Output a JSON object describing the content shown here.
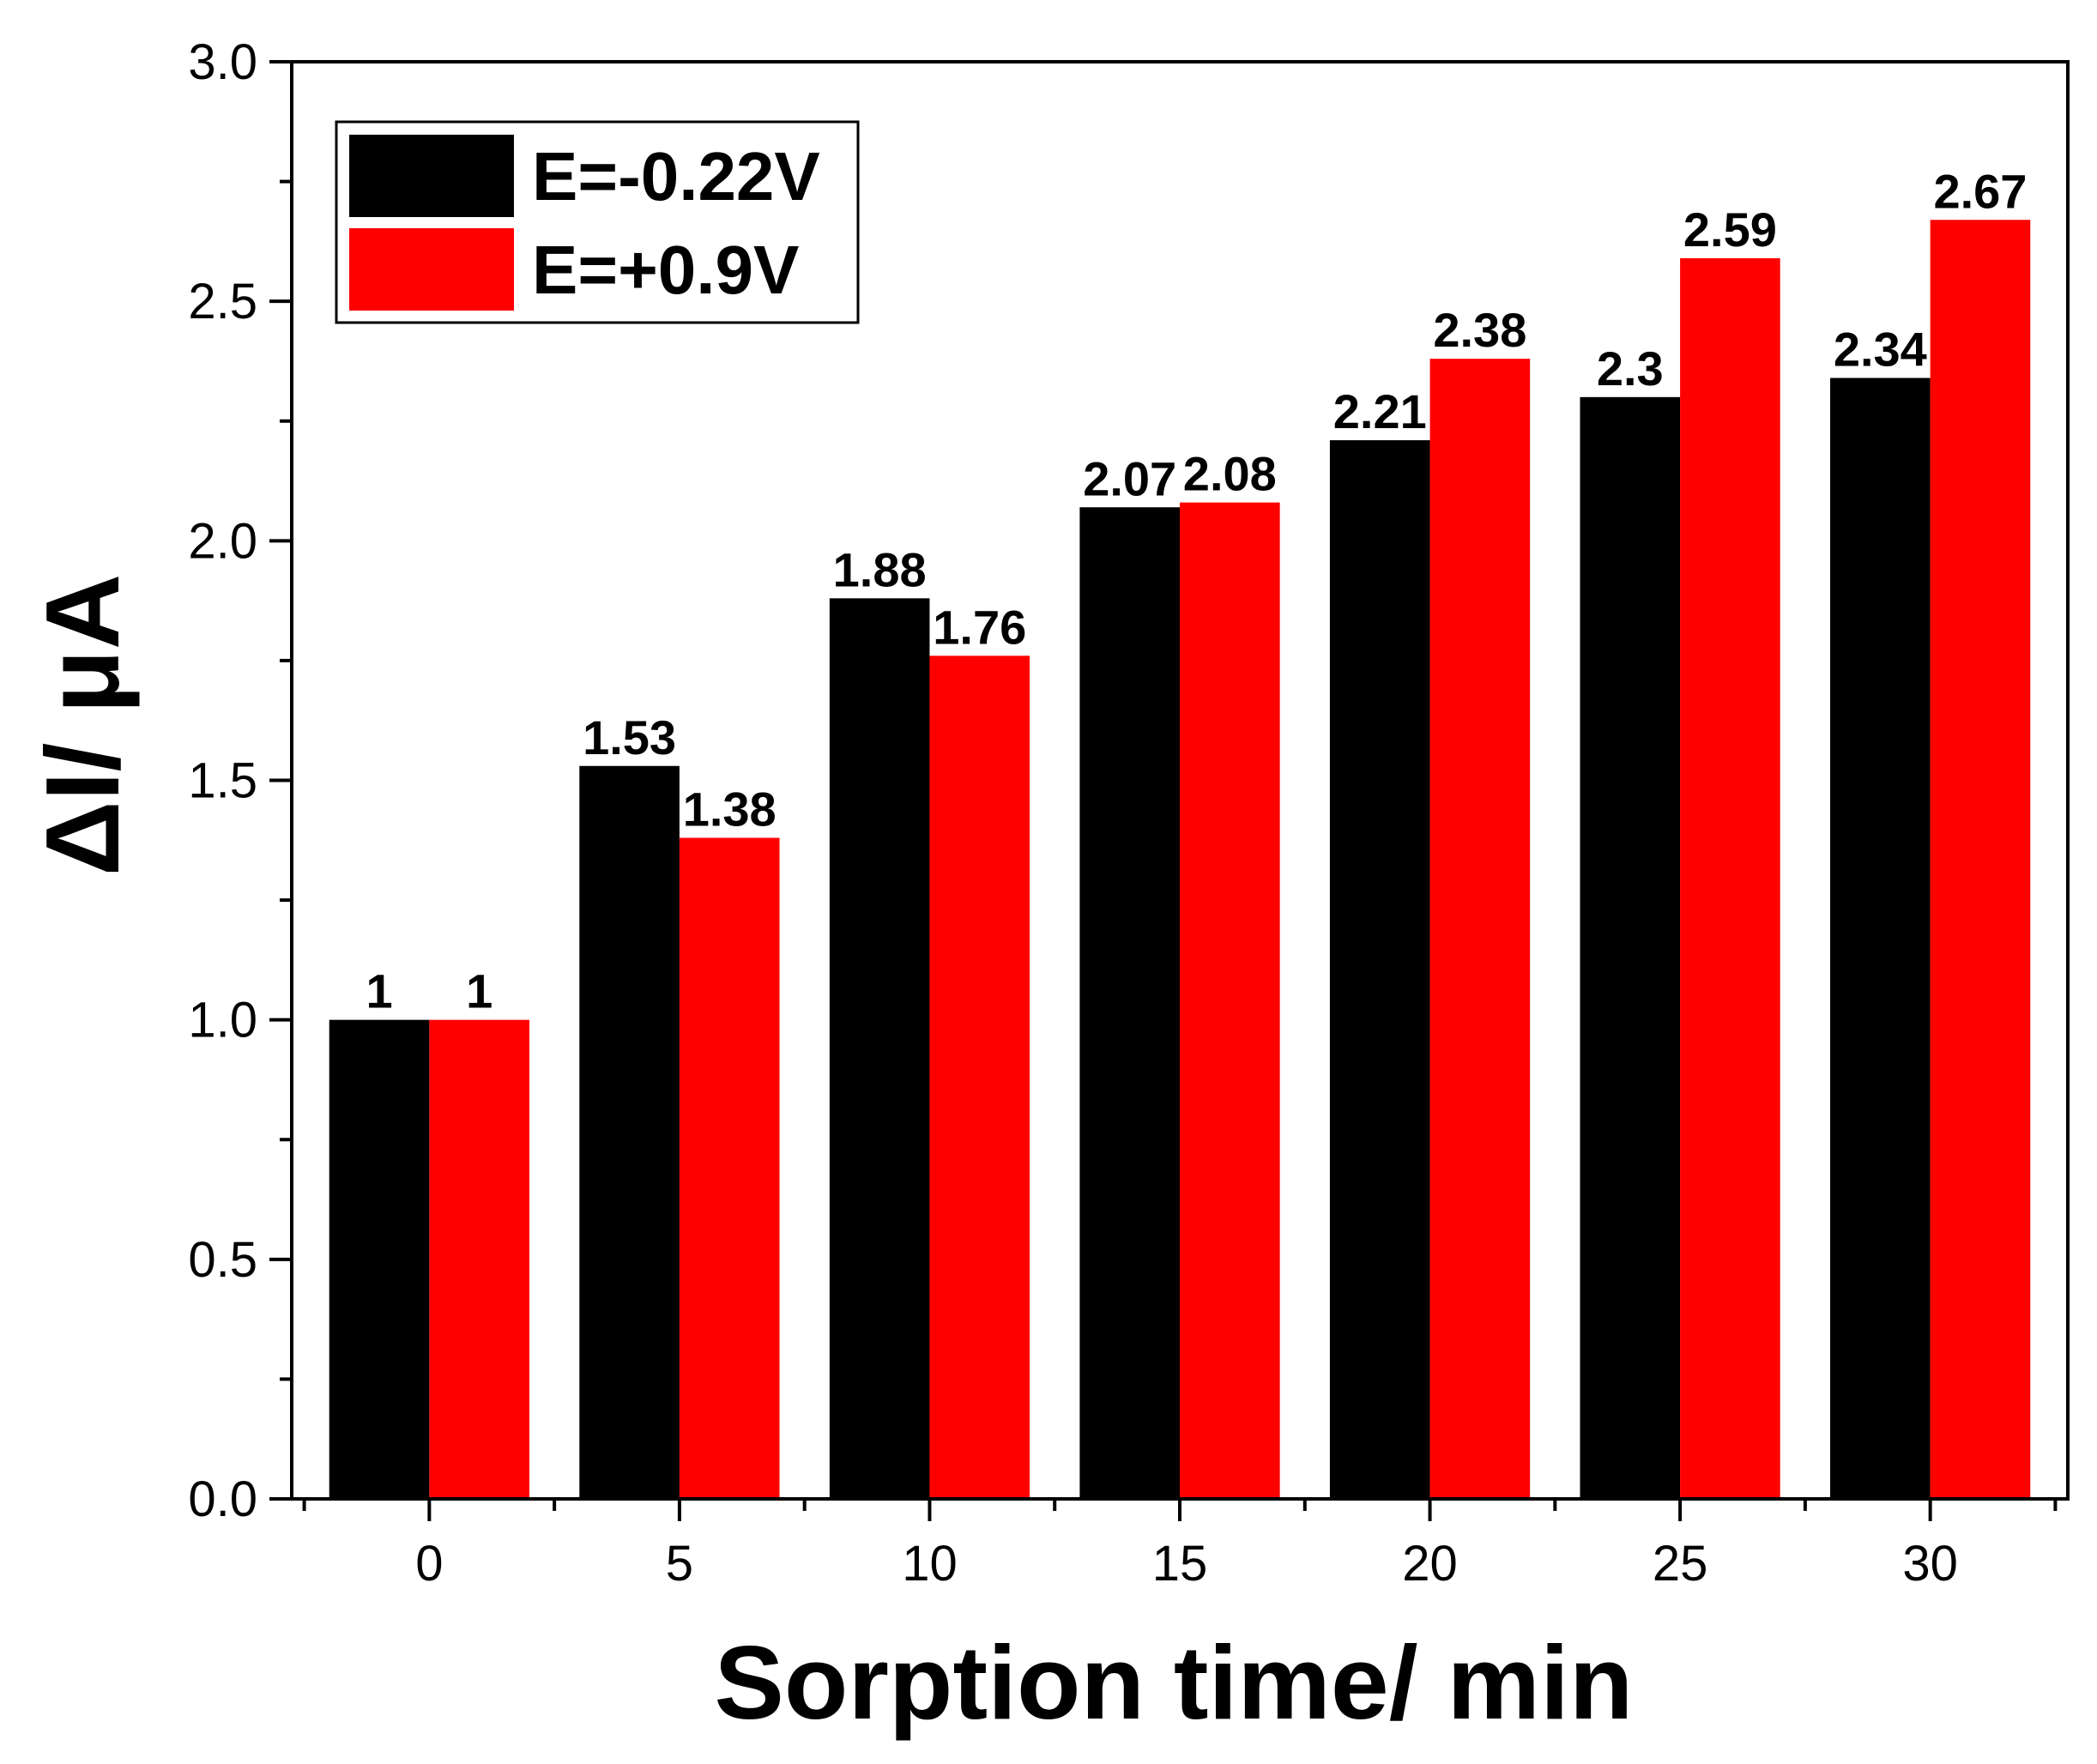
{
  "chart_data": {
    "type": "bar",
    "title": "",
    "xlabel": "Sorption time/ min",
    "ylabel": "ΔI/ μA",
    "categories": [
      "0",
      "5",
      "10",
      "15",
      "20",
      "25",
      "30"
    ],
    "series": [
      {
        "name": "E=-0.22V",
        "color": "#000000",
        "values": [
          1,
          1.53,
          1.88,
          2.07,
          2.21,
          2.3,
          2.34
        ],
        "labels": [
          "1",
          "1.53",
          "1.88",
          "2.07",
          "2.21",
          "2.3",
          "2.34"
        ]
      },
      {
        "name": "E=+0.9V",
        "color": "#ff0000",
        "values": [
          1,
          1.38,
          1.76,
          2.08,
          2.38,
          2.59,
          2.67
        ],
        "labels": [
          "1",
          "1.38",
          "1.76",
          "2.08",
          "2.38",
          "2.59",
          "2.67"
        ]
      }
    ],
    "ylim": [
      0,
      3.0
    ],
    "yticks": [
      "0.0",
      "0.5",
      "1.0",
      "1.5",
      "2.0",
      "2.5",
      "3.0"
    ],
    "legend_position": "top-left",
    "grid": false
  }
}
